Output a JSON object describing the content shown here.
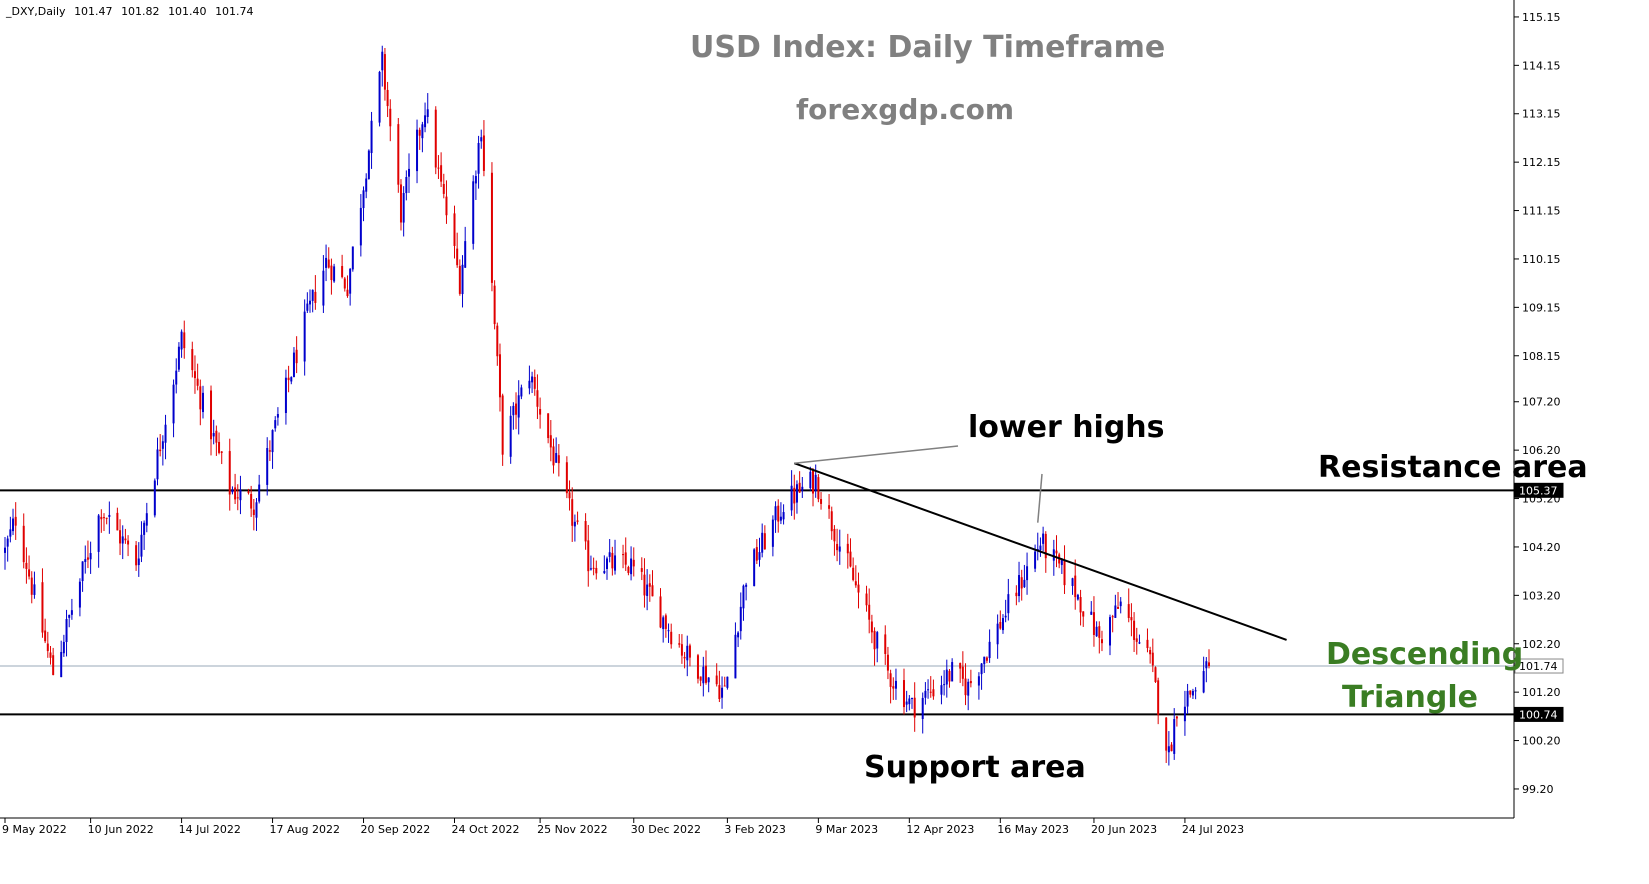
{
  "header": {
    "symbol": "_DXY,Daily",
    "open": "101.47",
    "high": "101.82",
    "low": "101.40",
    "close": "101.74"
  },
  "titles": {
    "main": "USD Index: Daily Timeframe",
    "sub": "forexgdp.com"
  },
  "annotations": {
    "lower_highs": "lower highs",
    "resistance": "Resistance area",
    "support": "Support area",
    "pattern_line1": "Descending",
    "pattern_line2": "Triangle"
  },
  "colors": {
    "bull": "#0000cc",
    "bear": "#e00000",
    "axis": "#000000",
    "title": "#808080",
    "pattern": "#3a7d23",
    "price_line": "#9aa8b8"
  },
  "chart_data": {
    "type": "candlestick",
    "title": "USD Index: Daily Timeframe",
    "subtitle": "forexgdp.com",
    "y_ticks": [
      "115.15",
      "114.15",
      "113.15",
      "112.15",
      "111.15",
      "110.15",
      "109.15",
      "108.15",
      "107.20",
      "106.20",
      "105.20",
      "104.20",
      "103.20",
      "102.20",
      "101.20",
      "100.20",
      "99.20"
    ],
    "x_ticks": [
      "9 May 2022",
      "10 Jun 2022",
      "14 Jul 2022",
      "17 Aug 2022",
      "20 Sep 2022",
      "24 Oct 2022",
      "25 Nov 2022",
      "30 Dec 2022",
      "3 Feb 2023",
      "9 Mar 2023",
      "12 Apr 2023",
      "16 May 2023",
      "20 Jun 2023",
      "24 Jul 2023"
    ],
    "ylim": [
      98.6,
      115.5
    ],
    "price_labels": [
      {
        "label": "105.37",
        "value": 105.37,
        "style": "black"
      },
      {
        "label": "101.74",
        "value": 101.74,
        "style": "gray"
      },
      {
        "label": "100.74",
        "value": 100.74,
        "style": "black"
      }
    ],
    "horizontal_lines": [
      {
        "name": "Resistance area",
        "value": 105.37
      },
      {
        "name": "Support area",
        "value": 100.74
      }
    ],
    "descending_trendline": {
      "from": {
        "date": "2023-02-28",
        "value": 105.93
      },
      "to": {
        "date": "2023-08-31",
        "value": 102.28
      }
    },
    "lower_highs": [
      {
        "date": "2023-02-28",
        "value": 105.93
      },
      {
        "date": "2023-05-30",
        "value": 104.7
      }
    ],
    "close_anchors": [
      {
        "date": "2022-05-09",
        "close": 104.1
      },
      {
        "date": "2022-05-13",
        "close": 104.8
      },
      {
        "date": "2022-05-25",
        "close": 102.0
      },
      {
        "date": "2022-05-27",
        "close": 101.6
      },
      {
        "date": "2022-06-14",
        "close": 105.0
      },
      {
        "date": "2022-06-27",
        "close": 103.9
      },
      {
        "date": "2022-07-14",
        "close": 108.5
      },
      {
        "date": "2022-08-01",
        "close": 105.4
      },
      {
        "date": "2022-08-10",
        "close": 105.1
      },
      {
        "date": "2022-08-29",
        "close": 108.8
      },
      {
        "date": "2022-09-06",
        "close": 110.1
      },
      {
        "date": "2022-09-14",
        "close": 109.6
      },
      {
        "date": "2022-09-27",
        "close": 114.2
      },
      {
        "date": "2022-10-04",
        "close": 111.1
      },
      {
        "date": "2022-10-13",
        "close": 113.3
      },
      {
        "date": "2022-10-26",
        "close": 109.7
      },
      {
        "date": "2022-11-03",
        "close": 112.9
      },
      {
        "date": "2022-11-11",
        "close": 106.3
      },
      {
        "date": "2022-11-21",
        "close": 107.8
      },
      {
        "date": "2022-12-05",
        "close": 105.1
      },
      {
        "date": "2022-12-13",
        "close": 103.9
      },
      {
        "date": "2022-12-29",
        "close": 103.8
      },
      {
        "date": "2023-01-18",
        "close": 102.0
      },
      {
        "date": "2023-02-02",
        "close": 101.2
      },
      {
        "date": "2023-02-10",
        "close": 103.6
      },
      {
        "date": "2023-02-24",
        "close": 105.1
      },
      {
        "date": "2023-03-08",
        "close": 105.6
      },
      {
        "date": "2023-03-16",
        "close": 104.4
      },
      {
        "date": "2023-04-04",
        "close": 101.6
      },
      {
        "date": "2023-04-13",
        "close": 100.9
      },
      {
        "date": "2023-04-28",
        "close": 101.6
      },
      {
        "date": "2023-05-04",
        "close": 101.3
      },
      {
        "date": "2023-05-31",
        "close": 104.3
      },
      {
        "date": "2023-06-13",
        "close": 103.3
      },
      {
        "date": "2023-06-22",
        "close": 102.3
      },
      {
        "date": "2023-06-30",
        "close": 103.0
      },
      {
        "date": "2023-07-11",
        "close": 101.8
      },
      {
        "date": "2023-07-18",
        "close": 99.9
      },
      {
        "date": "2023-07-21",
        "close": 100.9
      },
      {
        "date": "2023-07-28",
        "close": 101.3
      },
      {
        "date": "2023-08-02",
        "close": 101.74
      }
    ]
  }
}
